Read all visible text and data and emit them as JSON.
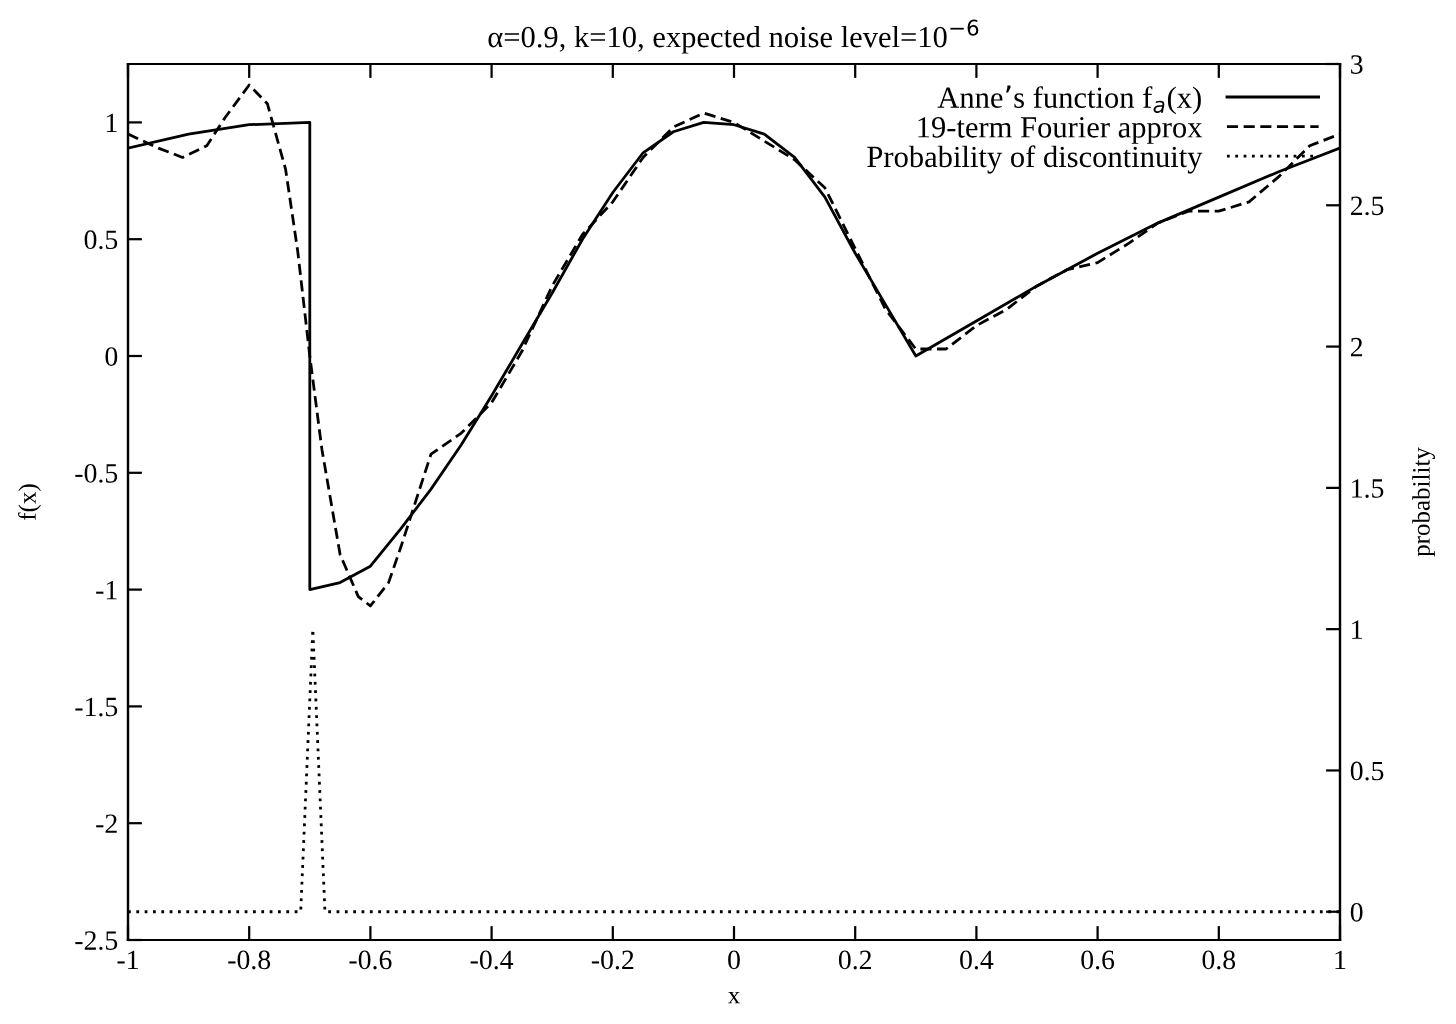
{
  "chart_data": {
    "type": "line",
    "title": "α=0.9, k=10, expected noise level=10$^{−6}$",
    "xlabel": "x",
    "ylabel": "f(x)",
    "y2label": "probability",
    "xlim": [
      -1,
      1
    ],
    "xticks": [
      -1,
      -0.8,
      -0.6,
      -0.4,
      -0.2,
      0,
      0.2,
      0.4,
      0.6,
      0.8,
      1
    ],
    "ylim": [
      -2.5,
      1.25
    ],
    "yticks": [
      -2.5,
      -2,
      -1.5,
      -1,
      -0.5,
      0,
      0.5,
      1
    ],
    "y2lim": [
      -0.1,
      3
    ],
    "y2ticks": [
      0,
      0.5,
      1,
      1.5,
      2,
      2.5,
      3
    ],
    "legend": "top right",
    "grid": false,
    "series": [
      {
        "name": "Anne’s function f$_{a}$(x)",
        "color": "#000000",
        "line_style": "solid",
        "x": [
          -1,
          -0.9,
          -0.8,
          -0.7,
          -0.7,
          -0.65,
          -0.6,
          -0.55,
          -0.5,
          -0.45,
          -0.4,
          -0.35,
          -0.3,
          -0.25,
          -0.2,
          -0.15,
          -0.1,
          -0.05,
          0,
          0.05,
          0.1,
          0.15,
          0.2,
          0.25,
          0.3,
          0.4,
          0.5,
          0.6,
          0.7,
          0.8,
          0.9,
          1
        ],
        "values": [
          0.89,
          0.95,
          0.99,
          1.0,
          -1.0,
          -0.97,
          -0.9,
          -0.74,
          -0.57,
          -0.38,
          -0.17,
          0.05,
          0.27,
          0.5,
          0.7,
          0.87,
          0.96,
          1.0,
          0.99,
          0.95,
          0.85,
          0.68,
          0.44,
          0.22,
          0.0,
          0.15,
          0.3,
          0.44,
          0.57,
          0.68,
          0.79,
          0.89
        ]
      },
      {
        "name": "19-term Fourier approx",
        "color": "#000000",
        "line_style": "dashed",
        "x": [
          -1,
          -0.95,
          -0.91,
          -0.87,
          -0.84,
          -0.8,
          -0.77,
          -0.74,
          -0.72,
          -0.7,
          -0.68,
          -0.65,
          -0.62,
          -0.6,
          -0.57,
          -0.55,
          -0.5,
          -0.45,
          -0.4,
          -0.35,
          -0.3,
          -0.25,
          -0.2,
          -0.15,
          -0.1,
          -0.05,
          0,
          0.05,
          0.1,
          0.15,
          0.2,
          0.25,
          0.3,
          0.35,
          0.4,
          0.45,
          0.5,
          0.55,
          0.6,
          0.65,
          0.7,
          0.75,
          0.8,
          0.85,
          0.9,
          0.95,
          1
        ],
        "values": [
          0.95,
          0.89,
          0.85,
          0.9,
          1.02,
          1.16,
          1.08,
          0.8,
          0.45,
          0.0,
          -0.4,
          -0.85,
          -1.03,
          -1.07,
          -0.97,
          -0.82,
          -0.42,
          -0.33,
          -0.2,
          0.02,
          0.3,
          0.52,
          0.66,
          0.85,
          0.98,
          1.04,
          1.0,
          0.92,
          0.84,
          0.72,
          0.46,
          0.2,
          0.03,
          0.03,
          0.13,
          0.2,
          0.3,
          0.37,
          0.4,
          0.48,
          0.57,
          0.62,
          0.62,
          0.66,
          0.77,
          0.9,
          0.95
        ]
      },
      {
        "name": "Probability of discontinuity",
        "color": "#000000",
        "line_style": "dotted",
        "axis": "y2",
        "x": [
          -1,
          -0.715,
          -0.705,
          -0.695,
          -0.685,
          -0.675,
          1
        ],
        "values": [
          0,
          0,
          0.5,
          1.0,
          0.5,
          0,
          0
        ]
      }
    ]
  }
}
